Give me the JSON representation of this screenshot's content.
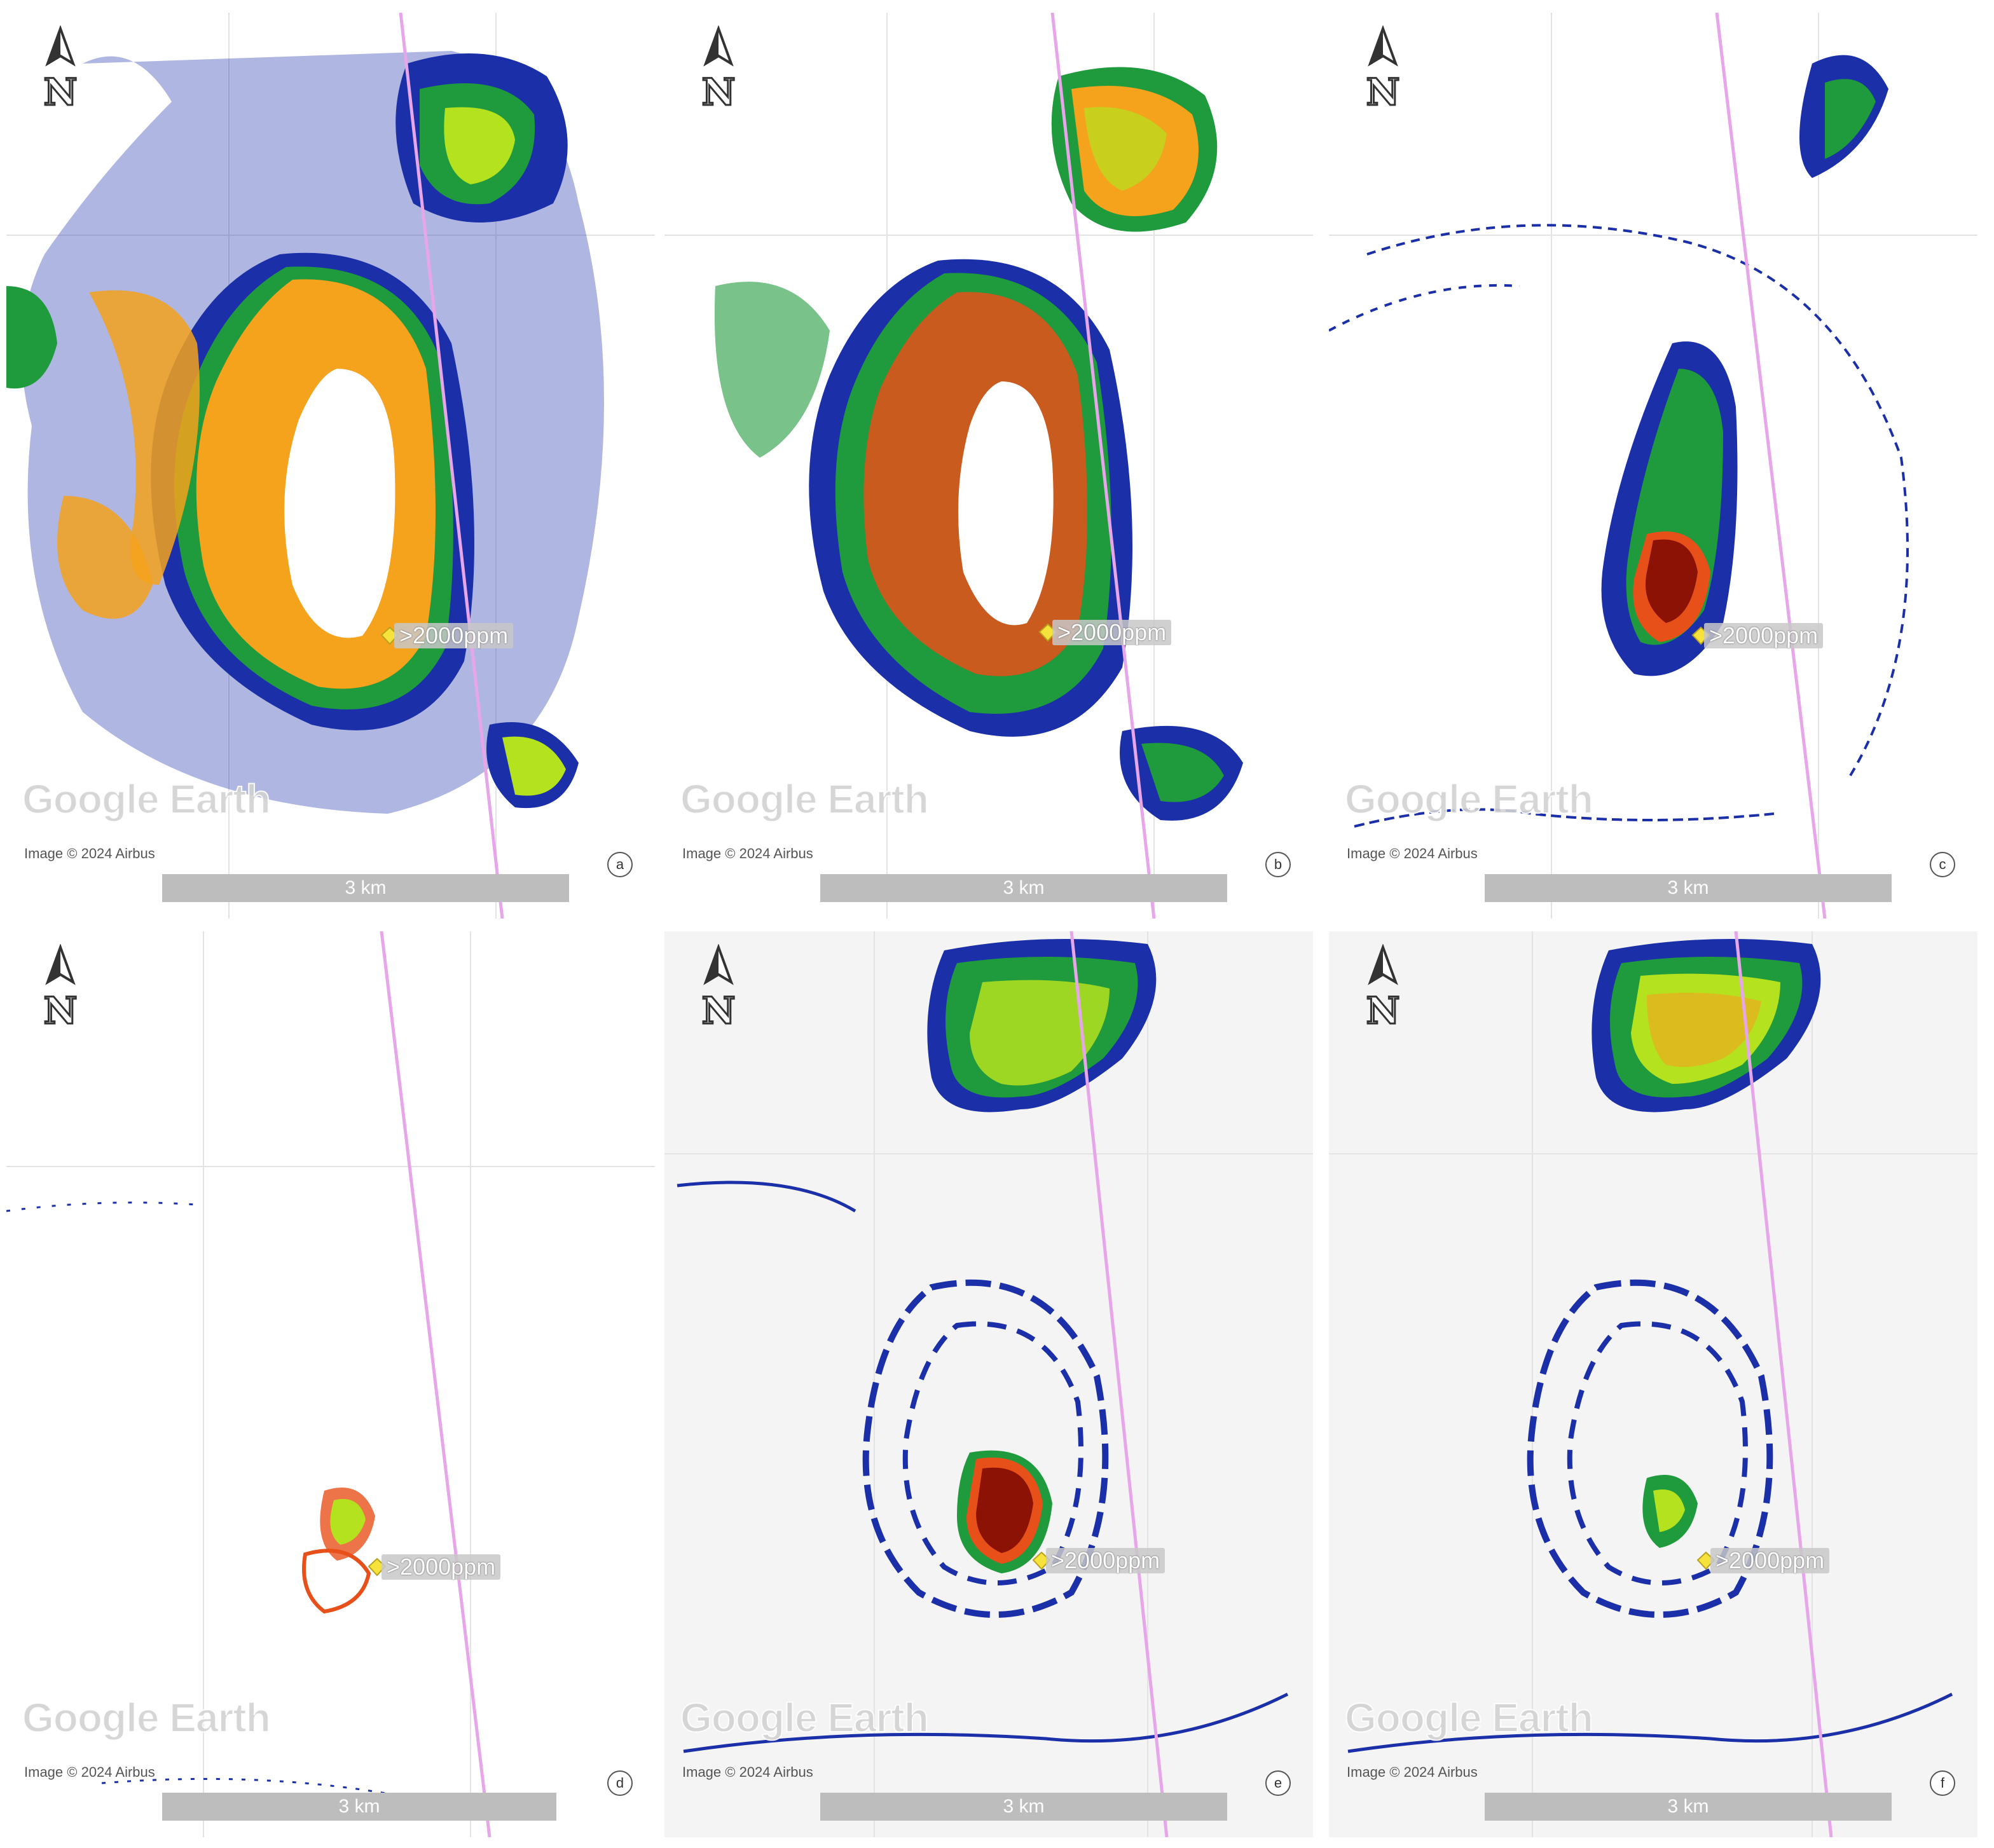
{
  "colors": {
    "low": "#1a2fa8",
    "mid_low": "#1f9a3c",
    "mid": "#b5e21e",
    "mid_high": "#f5a21c",
    "high": "#e8501a",
    "very_high": "#8b1204",
    "track": "#e7a6ea"
  },
  "panels": [
    {
      "id": "a",
      "letter": "a",
      "label": ">2000ppm",
      "watermark": "Google Earth",
      "credit": "Image © 2024 Airbus",
      "scale": "3 km",
      "north_icon": "north-arrow-icon",
      "icon_pin": "pin-icon"
    },
    {
      "id": "b",
      "letter": "b",
      "label": ">2000ppm",
      "watermark": "Google Earth",
      "credit": "Image © 2024 Airbus",
      "scale": "3 km",
      "north_icon": "north-arrow-icon",
      "icon_pin": "pin-icon"
    },
    {
      "id": "c",
      "letter": "c",
      "label": ">2000ppm",
      "watermark": "Google Earth",
      "credit": "Image © 2024 Airbus",
      "scale": "3 km",
      "north_icon": "north-arrow-icon",
      "icon_pin": "pin-icon"
    },
    {
      "id": "d",
      "letter": "d",
      "label": ">2000ppm",
      "watermark": "Google Earth",
      "credit": "Image © 2024 Airbus",
      "scale": "3 km",
      "north_icon": "north-arrow-icon",
      "icon_pin": "pin-icon"
    },
    {
      "id": "e",
      "letter": "e",
      "label": ">2000ppm",
      "watermark": "Google Earth",
      "credit": "Image © 2024 Airbus",
      "scale": "3 km",
      "north_icon": "north-arrow-icon",
      "icon_pin": "pin-icon"
    },
    {
      "id": "f",
      "letter": "f",
      "label": ">2000ppm",
      "watermark": "Google Earth",
      "credit": "Image © 2024 Airbus",
      "scale": "3 km",
      "north_icon": "north-arrow-icon",
      "icon_pin": "pin-icon"
    }
  ]
}
